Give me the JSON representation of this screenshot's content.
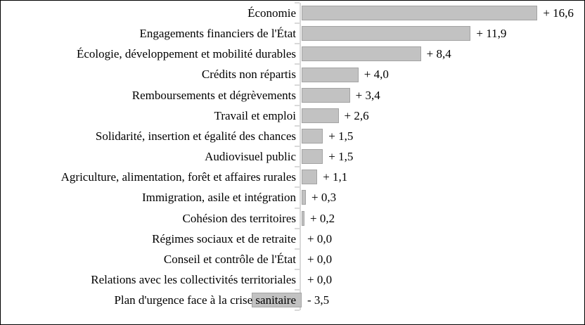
{
  "chart_data": {
    "type": "bar",
    "orientation": "horizontal",
    "title": "",
    "xlabel": "",
    "ylabel": "",
    "legend": false,
    "grid": false,
    "xlim": [
      -3.5,
      16.6
    ],
    "categories": [
      "Économie",
      "Engagements financiers de l'État",
      "Écologie, développement et mobilité durables",
      "Crédits non répartis",
      "Remboursements et dégrèvements",
      "Travail et emploi",
      "Solidarité, insertion et égalité des chances",
      "Audiovisuel public",
      "Agriculture, alimentation, forêt et affaires rurales",
      "Immigration, asile et intégration",
      "Cohésion des territoires",
      "Régimes sociaux et de retraite",
      "Conseil et contrôle de l'État",
      "Relations avec les collectivités territoriales",
      "Plan d'urgence face à la crise sanitaire"
    ],
    "values": [
      16.6,
      11.9,
      8.4,
      4.0,
      3.4,
      2.6,
      1.5,
      1.5,
      1.1,
      0.3,
      0.2,
      0.0,
      0.0,
      0.0,
      -3.5
    ],
    "value_labels": [
      "+ 16,6",
      "+ 11,9",
      "+ 8,4",
      "+ 4,0",
      "+ 3,4",
      "+ 2,6",
      "+ 1,5",
      "+ 1,5",
      "+ 1,1",
      "+ 0,3",
      "+ 0,2",
      "+ 0,0",
      "+ 0,0",
      "+ 0,0",
      "- 3,5"
    ],
    "colors": {
      "bar_fill": "#c2c2c2",
      "bar_border": "#a3a3a3",
      "axis": "#d9d9d9",
      "text": "#000000",
      "frame_border": "#000000",
      "background": "#ffffff"
    }
  }
}
